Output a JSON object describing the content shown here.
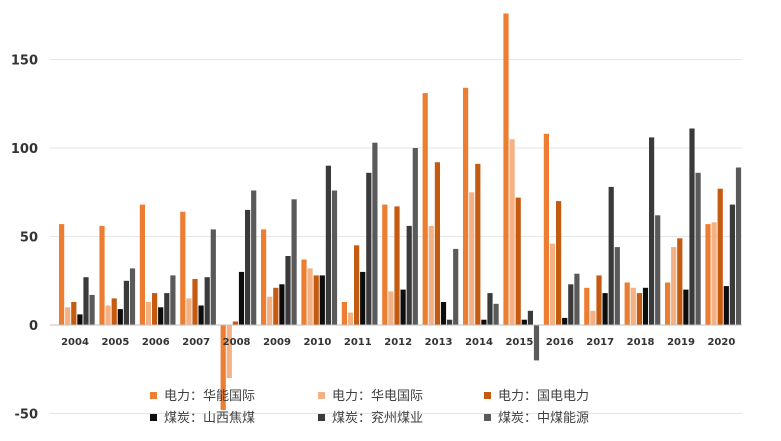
{
  "chart_data": {
    "type": "bar",
    "title": "",
    "xlabel": "",
    "ylabel": "",
    "ylim": [
      -50,
      175
    ],
    "yticks": [
      "150",
      "100",
      "50",
      "0",
      "-50"
    ],
    "ytick_values": [
      150,
      100,
      50,
      0,
      -50
    ],
    "grid": true,
    "legend_position": "bottom",
    "categories": [
      "2004",
      "2005",
      "2006",
      "2007",
      "2008",
      "2009",
      "2010",
      "2011",
      "2012",
      "2013",
      "2014",
      "2015",
      "2016",
      "2017",
      "2018",
      "2019",
      "2020"
    ],
    "series": [
      {
        "name": "电力：华能国际",
        "color": "#ED7D31",
        "values": [
          57,
          56,
          68,
          64,
          -48,
          54,
          37,
          13,
          68,
          131,
          134,
          176,
          108,
          21,
          24,
          24,
          57
        ]
      },
      {
        "name": "电力：华电国际",
        "color": "#F4B183",
        "values": [
          10,
          11,
          13,
          15,
          -30,
          16,
          32,
          7,
          19,
          56,
          75,
          105,
          46,
          8,
          21,
          44,
          58
        ]
      },
      {
        "name": "电力：国电电力",
        "color": "#C55A11",
        "values": [
          13,
          15,
          18,
          26,
          2,
          21,
          28,
          45,
          67,
          92,
          91,
          72,
          70,
          28,
          18,
          49,
          77
        ]
      },
      {
        "name": "煤炭：山西焦煤",
        "color": "#0D0D0D",
        "values": [
          6,
          9,
          10,
          11,
          30,
          23,
          28,
          30,
          20,
          13,
          3,
          3,
          4,
          18,
          21,
          20,
          22
        ]
      },
      {
        "name": "煤炭：兖州煤业",
        "color": "#3A3A3A",
        "values": [
          27,
          25,
          18,
          27,
          65,
          39,
          90,
          86,
          56,
          3,
          18,
          8,
          23,
          78,
          106,
          111,
          68
        ]
      },
      {
        "name": "煤炭：中煤能源",
        "color": "#5A5A5A",
        "values": [
          17,
          32,
          28,
          54,
          76,
          71,
          76,
          103,
          100,
          43,
          12,
          -20,
          29,
          44,
          62,
          86,
          89
        ]
      }
    ]
  }
}
